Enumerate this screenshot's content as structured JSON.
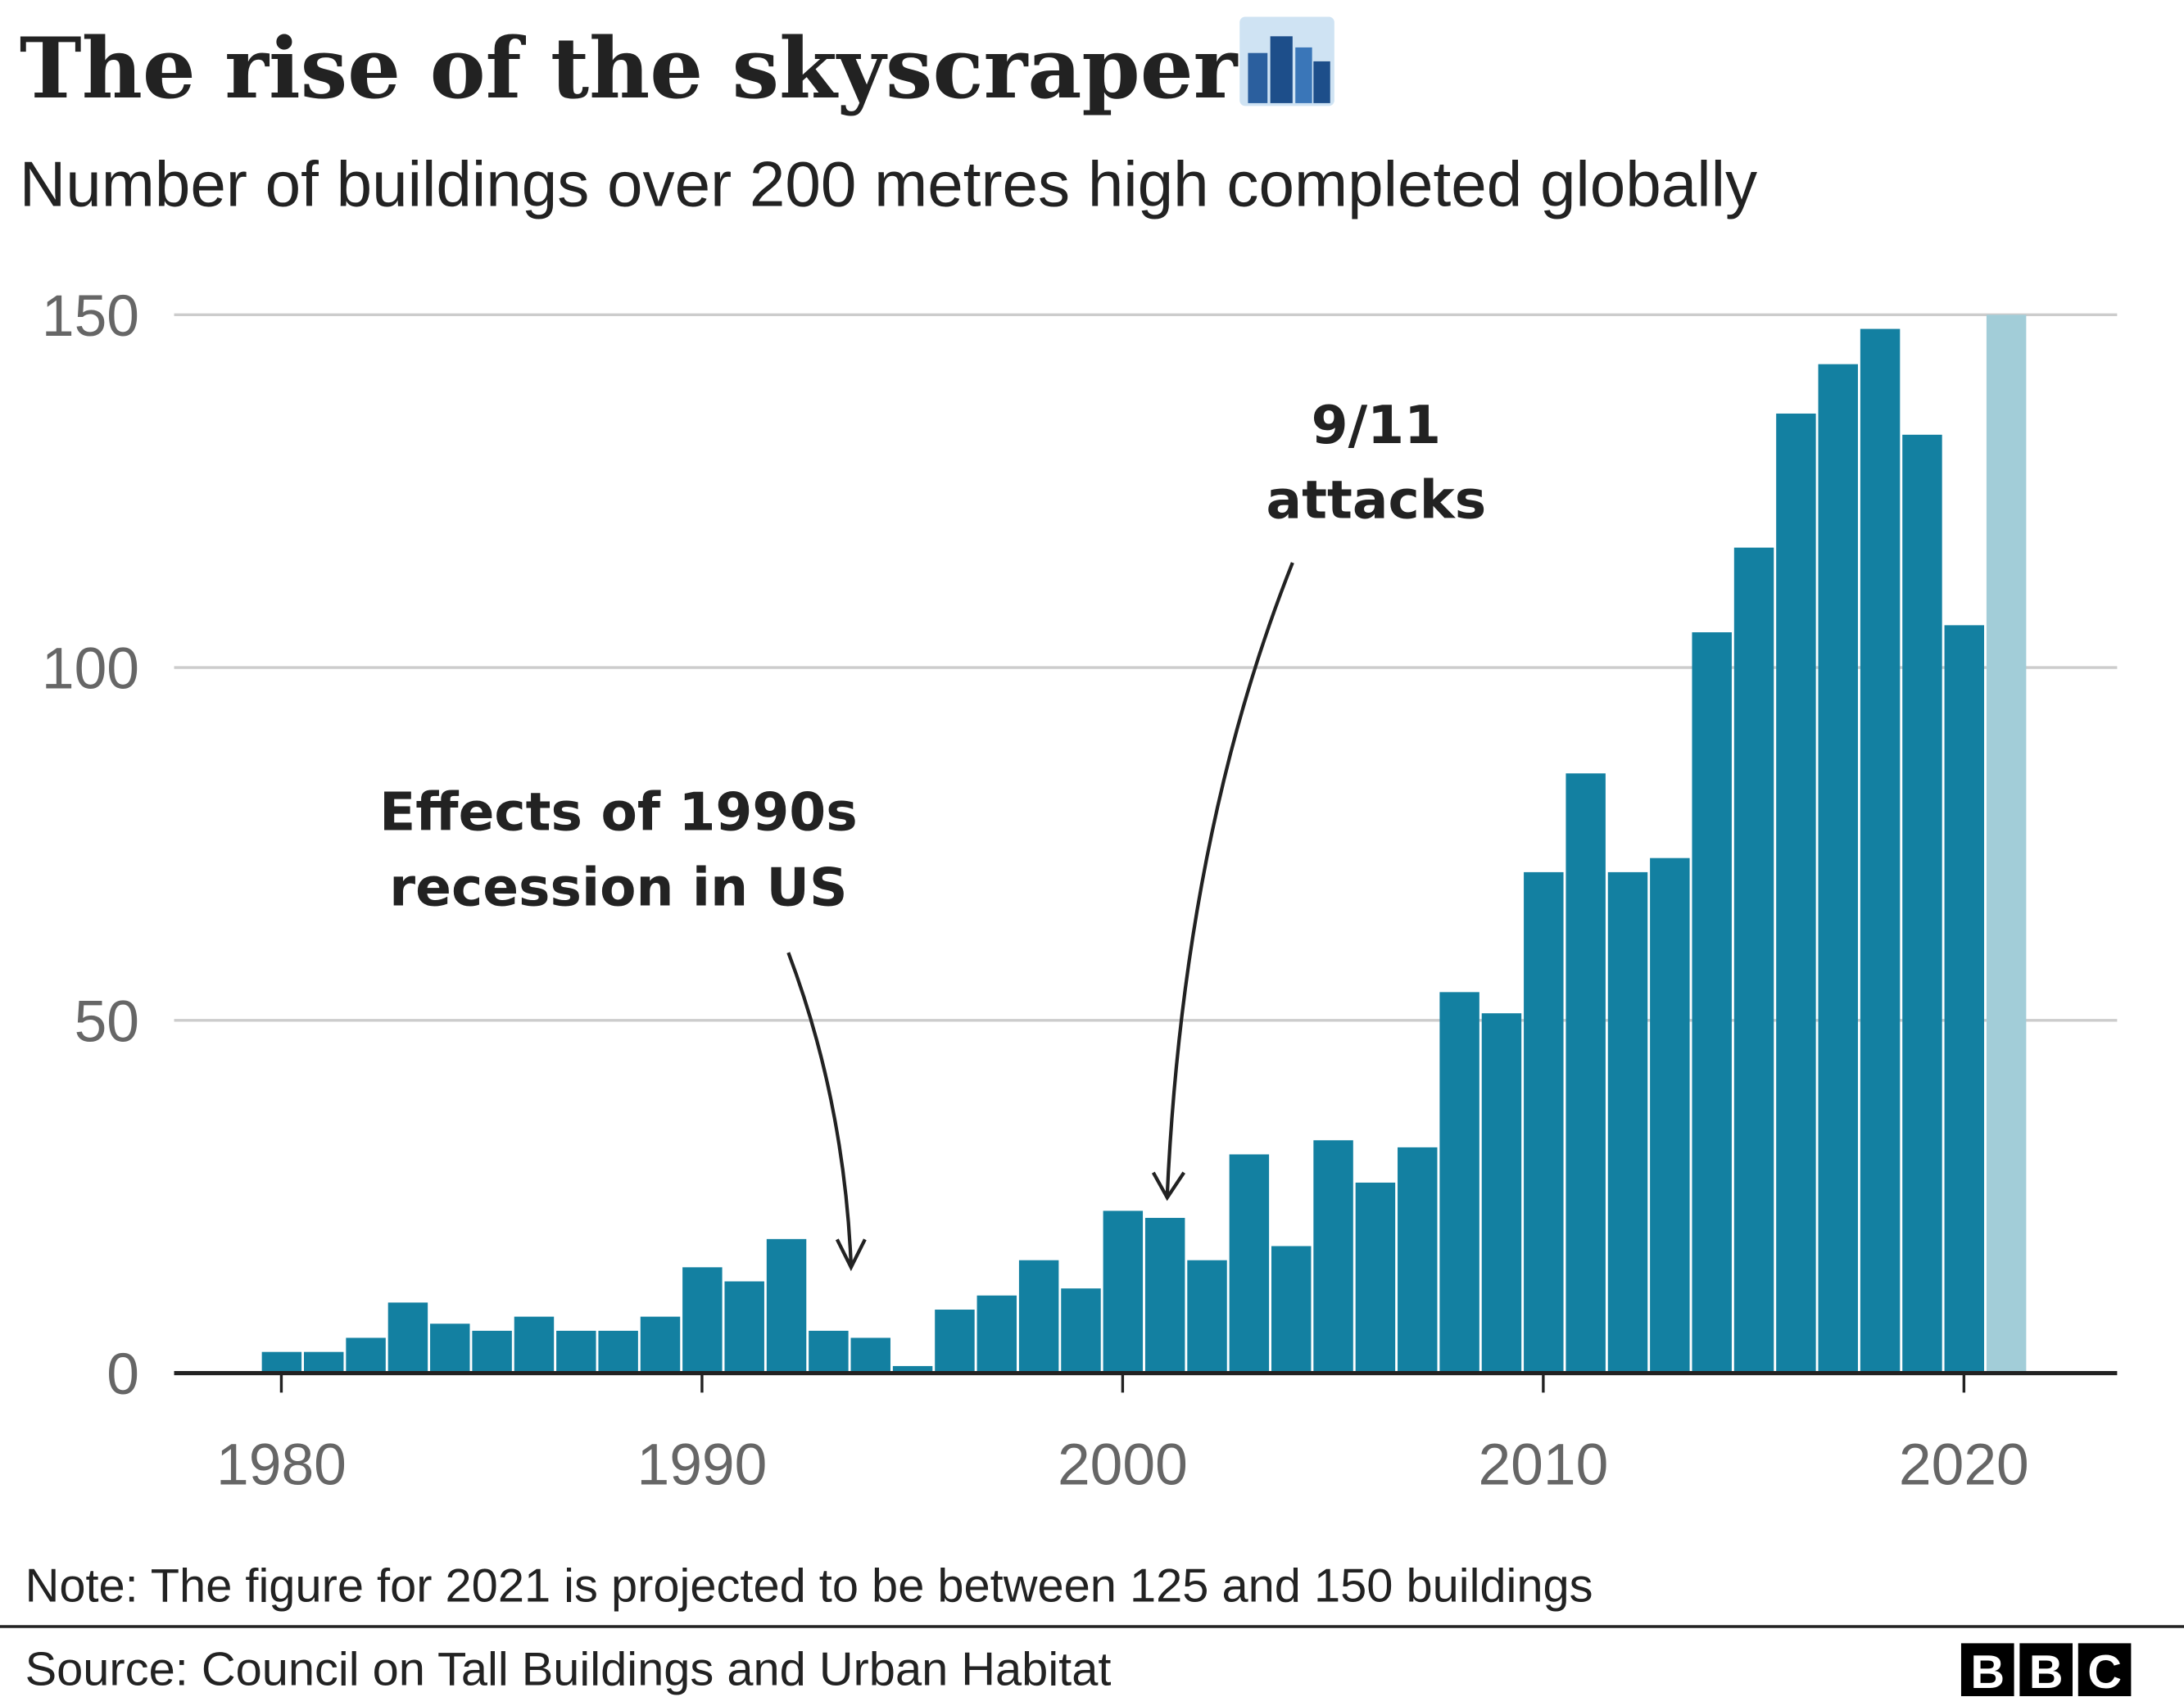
{
  "header": {
    "title": "The rise of the skyscraper",
    "title_icon": "cityscape-icon",
    "subtitle": "Number of buildings over 200 metres high completed globally"
  },
  "chart_data": {
    "type": "bar",
    "title": "The rise of the skyscraper",
    "subtitle": "Number of buildings over 200 metres high completed globally",
    "xlabel": "",
    "ylabel": "",
    "ylim": [
      0,
      150
    ],
    "yticks": [
      0,
      50,
      100,
      150
    ],
    "xticks": [
      1980,
      1990,
      2000,
      2010,
      2020
    ],
    "grid": true,
    "x": [
      1980,
      1981,
      1982,
      1983,
      1984,
      1985,
      1986,
      1987,
      1988,
      1989,
      1990,
      1991,
      1992,
      1993,
      1994,
      1995,
      1996,
      1997,
      1998,
      1999,
      2000,
      2001,
      2002,
      2003,
      2004,
      2005,
      2006,
      2007,
      2008,
      2009,
      2010,
      2011,
      2012,
      2013,
      2014,
      2015,
      2016,
      2017,
      2018,
      2019,
      2020,
      2021
    ],
    "values": [
      3,
      3,
      5,
      10,
      7,
      6,
      8,
      6,
      6,
      8,
      15,
      13,
      19,
      6,
      5,
      1,
      9,
      11,
      16,
      12,
      23,
      22,
      16,
      31,
      18,
      33,
      27,
      32,
      54,
      51,
      71,
      85,
      71,
      73,
      105,
      117,
      136,
      143,
      148,
      133,
      106,
      150
    ],
    "projected": [
      2021
    ],
    "colors": {
      "actual": "#1380A1",
      "projected": "#A2CDD8",
      "grid": "#cccccc",
      "axis": "#222222"
    },
    "annotations": [
      {
        "lines": [
          "Effects of 1990s",
          "recession in US"
        ],
        "points_to_year": 1994
      },
      {
        "lines": [
          "9/11",
          "attacks"
        ],
        "points_to_year": 2001
      }
    ]
  },
  "footer": {
    "note": "Note: The figure for 2021 is projected to be between 125 and 150 buildings",
    "source": "Source: Council on Tall Buildings and Urban Habitat",
    "logo": [
      "B",
      "B",
      "C"
    ]
  }
}
